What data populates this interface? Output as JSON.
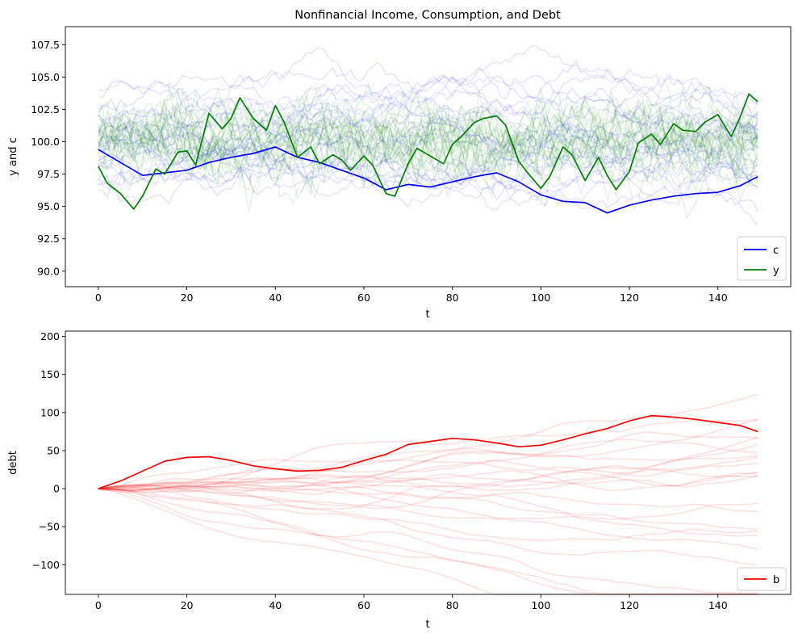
{
  "chart_data": [
    {
      "type": "line",
      "title": "Nonfinancial Income, Consumption, and Debt",
      "xlabel": "t",
      "ylabel": "y and c",
      "xlim": [
        -7.45,
        156.45
      ],
      "ylim": [
        88.8,
        108.9
      ],
      "xticks": [
        0,
        20,
        40,
        60,
        80,
        100,
        120,
        140
      ],
      "xtick_labels": [
        "0",
        "20",
        "40",
        "60",
        "80",
        "100",
        "120",
        "140"
      ],
      "yticks": [
        90.0,
        92.5,
        95.0,
        97.5,
        100.0,
        102.5,
        105.0,
        107.5
      ],
      "ytick_labels": [
        "90.0",
        "92.5",
        "95.0",
        "97.5",
        "100.0",
        "102.5",
        "105.0",
        "107.5"
      ],
      "legend": {
        "position": "lower right",
        "entries": [
          "c",
          "y"
        ]
      },
      "background_paths": {
        "count": 25,
        "colors": [
          "#0000ff",
          "#008000"
        ],
        "alpha": 0.1
      },
      "series": [
        {
          "name": "c",
          "color": "#0000ff",
          "x": [
            0,
            5,
            10,
            15,
            20,
            25,
            30,
            35,
            40,
            45,
            50,
            55,
            60,
            65,
            70,
            75,
            80,
            85,
            90,
            95,
            100,
            105,
            110,
            115,
            120,
            125,
            130,
            135,
            140,
            145,
            149
          ],
          "values": [
            99.4,
            98.4,
            97.4,
            97.6,
            97.8,
            98.4,
            98.8,
            99.1,
            99.6,
            98.8,
            98.4,
            97.8,
            97.2,
            96.3,
            96.7,
            96.5,
            96.9,
            97.3,
            97.6,
            96.9,
            95.9,
            95.4,
            95.3,
            94.5,
            95.1,
            95.5,
            95.8,
            96.0,
            96.1,
            96.6,
            97.3
          ]
        },
        {
          "name": "y",
          "color": "#008000",
          "x": [
            0,
            2,
            5,
            8,
            10,
            13,
            15,
            18,
            20,
            22,
            25,
            28,
            30,
            32,
            35,
            38,
            40,
            42,
            45,
            48,
            50,
            53,
            55,
            57,
            60,
            62,
            65,
            67,
            70,
            72,
            75,
            78,
            80,
            82,
            85,
            87,
            90,
            92,
            95,
            97,
            100,
            102,
            105,
            107,
            110,
            113,
            115,
            117,
            120,
            122,
            125,
            127,
            130,
            132,
            135,
            137,
            140,
            143,
            145,
            147,
            149
          ],
          "values": [
            98.1,
            96.8,
            96.0,
            94.8,
            95.8,
            97.9,
            97.5,
            99.2,
            99.3,
            98.2,
            102.2,
            101.0,
            101.8,
            103.4,
            101.8,
            100.9,
            102.8,
            101.5,
            98.8,
            99.6,
            98.3,
            99.0,
            98.6,
            97.8,
            98.9,
            98.2,
            96.0,
            95.8,
            98.3,
            99.5,
            98.9,
            98.3,
            99.8,
            100.4,
            101.5,
            101.8,
            102.0,
            101.3,
            98.5,
            97.6,
            96.4,
            97.3,
            99.6,
            99.0,
            97.0,
            98.8,
            97.4,
            96.3,
            97.7,
            99.9,
            100.6,
            99.8,
            101.4,
            100.9,
            100.8,
            101.5,
            102.1,
            100.4,
            101.9,
            103.7,
            103.1
          ]
        }
      ]
    },
    {
      "type": "line",
      "title": "",
      "xlabel": "t",
      "ylabel": "debt",
      "xlim": [
        -7.45,
        156.45
      ],
      "ylim": [
        -139,
        207
      ],
      "xticks": [
        0,
        20,
        40,
        60,
        80,
        100,
        120,
        140
      ],
      "xtick_labels": [
        "0",
        "20",
        "40",
        "60",
        "80",
        "100",
        "120",
        "140"
      ],
      "yticks": [
        -100,
        -50,
        0,
        50,
        100,
        150,
        200
      ],
      "ytick_labels": [
        "−100",
        "−50",
        "0",
        "50",
        "100",
        "150",
        "200"
      ],
      "legend": {
        "position": "lower right",
        "entries": [
          "b"
        ]
      },
      "background_paths": {
        "count": 25,
        "colors": [
          "#ff0000"
        ],
        "alpha": 0.12
      },
      "series": [
        {
          "name": "b",
          "color": "#ff0000",
          "x": [
            0,
            5,
            10,
            15,
            20,
            25,
            30,
            35,
            40,
            45,
            50,
            55,
            60,
            65,
            70,
            75,
            80,
            85,
            90,
            95,
            100,
            105,
            110,
            115,
            120,
            125,
            130,
            135,
            140,
            145,
            149
          ],
          "values": [
            0,
            10,
            23,
            36,
            41,
            42,
            37,
            30,
            26,
            23,
            24,
            28,
            37,
            45,
            58,
            62,
            66,
            64,
            60,
            55,
            57,
            64,
            72,
            79,
            89,
            96,
            94,
            91,
            87,
            83,
            75
          ]
        }
      ]
    }
  ]
}
